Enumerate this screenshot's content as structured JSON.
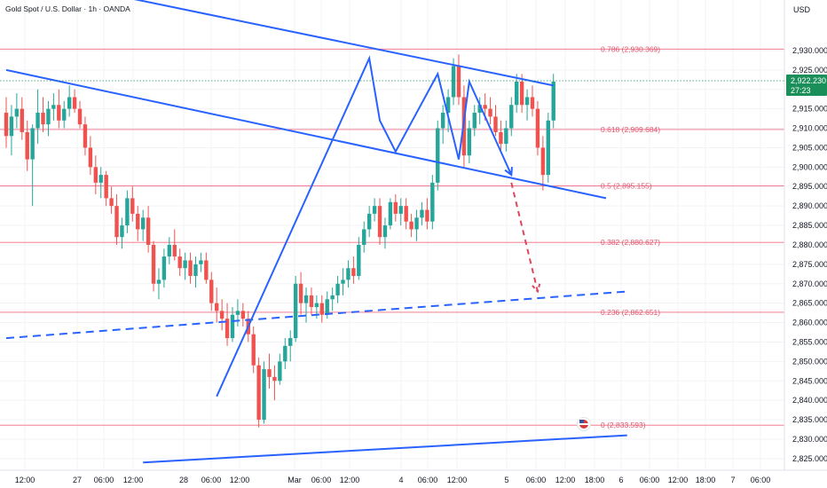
{
  "header": {
    "title": "Gold Spot / U.S. Dollar · 1h · OANDA",
    "currency": "USD"
  },
  "colors": {
    "up": "#26a69a",
    "down": "#ef5350",
    "trendline": "#2962ff",
    "fib": "#f06a80",
    "projection": "#e0455e",
    "price_tag": "#1b8f5a",
    "grid": "#f2f3f6"
  },
  "price_tag": {
    "price": "2,922.230",
    "countdown": "27:23"
  },
  "chart_data": {
    "type": "candlestick",
    "symbol": "Gold Spot / U.S. Dollar",
    "interval": "1h",
    "source": "OANDA",
    "ylim": [
      2822,
      2943
    ],
    "y_ticks": [
      "2,825.000",
      "2,830.000",
      "2,835.000",
      "2,840.000",
      "2,845.000",
      "2,850.000",
      "2,855.000",
      "2,860.000",
      "2,865.000",
      "2,870.000",
      "2,875.000",
      "2,880.000",
      "2,885.000",
      "2,890.000",
      "2,895.000",
      "2,900.000",
      "2,905.000",
      "2,910.000",
      "2,915.000",
      "2,920.000",
      "2,925.000",
      "2,930.000"
    ],
    "x_ticks": [
      "12:00",
      "27",
      "06:00",
      "12:00",
      "28",
      "06:00",
      "12:00",
      "Mar",
      "06:00",
      "12:00",
      "4",
      "06:00",
      "12:00",
      "5",
      "06:00",
      "12:00",
      "18:00",
      "6",
      "06:00",
      "12:00",
      "18:00",
      "7",
      "06:00"
    ],
    "fib_levels": [
      {
        "label": "0.786 (2,930.369)",
        "value": 2930.369
      },
      {
        "label": "0.618 (2,909.684)",
        "value": 2909.684
      },
      {
        "label": "0.5 (2,895.155)",
        "value": 2895.155
      },
      {
        "label": "0.382 (2,880.627)",
        "value": 2880.627
      },
      {
        "label": "0.236 (2,862.651)",
        "value": 2862.651
      },
      {
        "label": "0 (2,833.593)",
        "value": 2833.593
      }
    ],
    "candles": [
      [
        2914,
        2918,
        2905,
        2908
      ],
      [
        2908,
        2916,
        2903,
        2913
      ],
      [
        2913,
        2919,
        2910,
        2915
      ],
      [
        2915,
        2918,
        2907,
        2909
      ],
      [
        2909,
        2912,
        2899,
        2902
      ],
      [
        2902,
        2911,
        2890,
        2910
      ],
      [
        2910,
        2920,
        2906,
        2914
      ],
      [
        2914,
        2918,
        2909,
        2911
      ],
      [
        2911,
        2917,
        2908,
        2915
      ],
      [
        2915,
        2919,
        2912,
        2916
      ],
      [
        2916,
        2920,
        2910,
        2912
      ],
      [
        2912,
        2917,
        2910,
        2915
      ],
      [
        2915,
        2921,
        2913,
        2918
      ],
      [
        2918,
        2920,
        2914,
        2915
      ],
      [
        2915,
        2917,
        2910,
        2911
      ],
      [
        2911,
        2913,
        2903,
        2905
      ],
      [
        2905,
        2908,
        2898,
        2900
      ],
      [
        2900,
        2903,
        2893,
        2896
      ],
      [
        2896,
        2900,
        2892,
        2898
      ],
      [
        2898,
        2899,
        2890,
        2892
      ],
      [
        2892,
        2895,
        2888,
        2890
      ],
      [
        2890,
        2893,
        2880,
        2882
      ],
      [
        2882,
        2887,
        2879,
        2885
      ],
      [
        2885,
        2894,
        2883,
        2892
      ],
      [
        2892,
        2895,
        2886,
        2888
      ],
      [
        2888,
        2890,
        2881,
        2884
      ],
      [
        2884,
        2889,
        2881,
        2887
      ],
      [
        2887,
        2890,
        2878,
        2880
      ],
      [
        2880,
        2881,
        2868,
        2870
      ],
      [
        2870,
        2874,
        2866,
        2871
      ],
      [
        2871,
        2879,
        2869,
        2877
      ],
      [
        2877,
        2882,
        2875,
        2880
      ],
      [
        2880,
        2884,
        2876,
        2877
      ],
      [
        2877,
        2879,
        2872,
        2874
      ],
      [
        2874,
        2878,
        2871,
        2876
      ],
      [
        2876,
        2878,
        2870,
        2872
      ],
      [
        2872,
        2877,
        2869,
        2875
      ],
      [
        2875,
        2878,
        2873,
        2876
      ],
      [
        2876,
        2878,
        2870,
        2871
      ],
      [
        2871,
        2873,
        2863,
        2865
      ],
      [
        2865,
        2869,
        2860,
        2863
      ],
      [
        2863,
        2866,
        2858,
        2861
      ],
      [
        2861,
        2865,
        2854,
        2856
      ],
      [
        2856,
        2864,
        2855,
        2862
      ],
      [
        2862,
        2866,
        2859,
        2863
      ],
      [
        2863,
        2865,
        2859,
        2861
      ],
      [
        2861,
        2863,
        2855,
        2857
      ],
      [
        2857,
        2859,
        2847,
        2849
      ],
      [
        2849,
        2851,
        2833,
        2835
      ],
      [
        2835,
        2850,
        2834,
        2848
      ],
      [
        2848,
        2852,
        2843,
        2846
      ],
      [
        2846,
        2849,
        2840,
        2845
      ],
      [
        2845,
        2852,
        2844,
        2850
      ],
      [
        2850,
        2856,
        2848,
        2854
      ],
      [
        2854,
        2858,
        2850,
        2856
      ],
      [
        2856,
        2872,
        2855,
        2870
      ],
      [
        2870,
        2873,
        2862,
        2865
      ],
      [
        2865,
        2869,
        2860,
        2867
      ],
      [
        2867,
        2869,
        2862,
        2864
      ],
      [
        2864,
        2867,
        2861,
        2865
      ],
      [
        2865,
        2867,
        2860,
        2862
      ],
      [
        2862,
        2868,
        2861,
        2866
      ],
      [
        2866,
        2869,
        2863,
        2867
      ],
      [
        2867,
        2872,
        2865,
        2870
      ],
      [
        2870,
        2874,
        2867,
        2871
      ],
      [
        2871,
        2876,
        2869,
        2874
      ],
      [
        2874,
        2877,
        2870,
        2872
      ],
      [
        2872,
        2882,
        2871,
        2880
      ],
      [
        2880,
        2886,
        2878,
        2884
      ],
      [
        2884,
        2890,
        2882,
        2888
      ],
      [
        2888,
        2892,
        2886,
        2890
      ],
      [
        2890,
        2892,
        2880,
        2882
      ],
      [
        2882,
        2887,
        2879,
        2885
      ],
      [
        2885,
        2892,
        2884,
        2891
      ],
      [
        2891,
        2893,
        2886,
        2888
      ],
      [
        2888,
        2892,
        2885,
        2890
      ],
      [
        2890,
        2892,
        2884,
        2886
      ],
      [
        2886,
        2888,
        2882,
        2884
      ],
      [
        2884,
        2889,
        2881,
        2887
      ],
      [
        2887,
        2891,
        2885,
        2889
      ],
      [
        2889,
        2892,
        2884,
        2886
      ],
      [
        2886,
        2898,
        2884,
        2896
      ],
      [
        2896,
        2912,
        2894,
        2910
      ],
      [
        2910,
        2916,
        2906,
        2914
      ],
      [
        2914,
        2920,
        2909,
        2918
      ],
      [
        2918,
        2928,
        2916,
        2926
      ],
      [
        2926,
        2929,
        2916,
        2918
      ],
      [
        2918,
        2921,
        2900,
        2903
      ],
      [
        2903,
        2912,
        2901,
        2910
      ],
      [
        2910,
        2916,
        2908,
        2914
      ],
      [
        2914,
        2918,
        2911,
        2916
      ],
      [
        2916,
        2919,
        2912,
        2915
      ],
      [
        2915,
        2918,
        2911,
        2913
      ],
      [
        2913,
        2916,
        2908,
        2909
      ],
      [
        2909,
        2912,
        2904,
        2906
      ],
      [
        2906,
        2912,
        2904,
        2910
      ],
      [
        2910,
        2918,
        2908,
        2916
      ],
      [
        2916,
        2924,
        2914,
        2922
      ],
      [
        2922,
        2924,
        2914,
        2916
      ],
      [
        2916,
        2920,
        2912,
        2918
      ],
      [
        2918,
        2921,
        2913,
        2915
      ],
      [
        2915,
        2917,
        2903,
        2905
      ],
      [
        2905,
        2908,
        2894,
        2898
      ],
      [
        2898,
        2914,
        2896,
        2912
      ],
      [
        2912,
        2924,
        2910,
        2922
      ]
    ],
    "trendlines": [
      {
        "name": "channel-top-upper",
        "style": "solid",
        "points": [
          [
            0,
            2950
          ],
          [
            104,
            2921
          ]
        ]
      },
      {
        "name": "channel-top-lower",
        "style": "solid",
        "points": [
          [
            0,
            2925
          ],
          [
            114,
            2892
          ]
        ]
      },
      {
        "name": "support-dashed",
        "style": "dashed",
        "points": [
          [
            0,
            2856
          ],
          [
            118,
            2868
          ]
        ]
      },
      {
        "name": "support-bottom",
        "style": "solid",
        "points": [
          [
            26,
            2824
          ],
          [
            118,
            2831
          ]
        ]
      }
    ],
    "wave_path": [
      [
        40,
        2841
      ],
      [
        69,
        2928
      ],
      [
        71,
        2912
      ],
      [
        74,
        2904
      ],
      [
        82,
        2924
      ],
      [
        86,
        2902
      ],
      [
        88,
        2922
      ],
      [
        96,
        2898
      ]
    ],
    "projection": [
      [
        96,
        2896
      ],
      [
        101,
        2868
      ]
    ]
  }
}
